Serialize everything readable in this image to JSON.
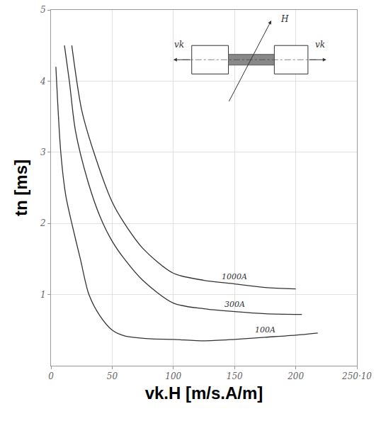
{
  "chart_data": {
    "type": "line",
    "x_label": "vk.H [m/s.A/m]",
    "y_label": "tn [ms]",
    "xlim": [
      0,
      250
    ],
    "ylim": [
      0,
      5
    ],
    "xticks": [
      0,
      50,
      100,
      150,
      200,
      {
        "value": 250,
        "label": "250·10"
      }
    ],
    "yticks": [
      1,
      2,
      3,
      4,
      5
    ],
    "grid": true,
    "color": "#333333",
    "series": [
      {
        "name": "100A",
        "x": [
          4,
          8,
          12,
          17,
          24,
          31,
          40,
          50,
          60,
          80,
          100,
          125,
          150,
          175,
          200,
          218
        ],
        "values": [
          4.2,
          3.0,
          2.4,
          2.0,
          1.5,
          1.0,
          0.7,
          0.5,
          0.42,
          0.38,
          0.37,
          0.35,
          0.37,
          0.4,
          0.43,
          0.46
        ]
      },
      {
        "name": "300A",
        "x": [
          11,
          15,
          20,
          30,
          40,
          50,
          60,
          75,
          100,
          125,
          150,
          175,
          205
        ],
        "values": [
          4.5,
          4.0,
          3.3,
          2.6,
          2.1,
          1.75,
          1.5,
          1.2,
          0.88,
          0.8,
          0.76,
          0.73,
          0.72
        ]
      },
      {
        "name": "1000A",
        "x": [
          17,
          25,
          35,
          50,
          60,
          75,
          100,
          125,
          150,
          175,
          200
        ],
        "values": [
          4.5,
          3.6,
          3.0,
          2.3,
          2.0,
          1.65,
          1.3,
          1.2,
          1.15,
          1.1,
          1.08
        ]
      }
    ],
    "inset": {
      "labels": {
        "field": "H",
        "left_velocity": "vk",
        "right_velocity": "vk"
      }
    }
  }
}
